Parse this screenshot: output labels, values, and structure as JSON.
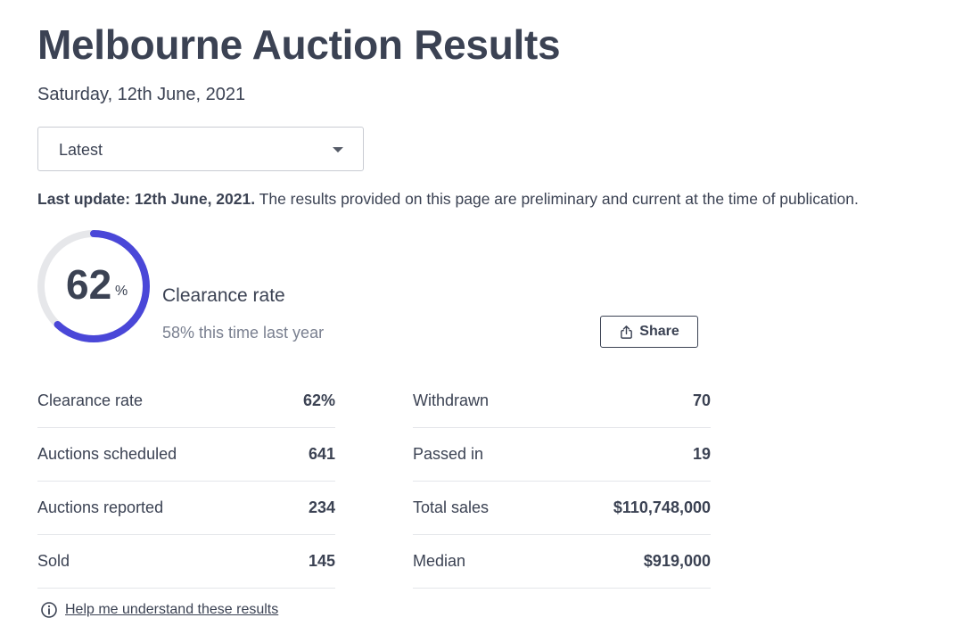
{
  "header": {
    "title": "Melbourne Auction Results",
    "date": "Saturday, 12th June, 2021"
  },
  "filter": {
    "selected": "Latest"
  },
  "update": {
    "bold": "Last update: 12th June, 2021.",
    "text": " The results provided on this page are preliminary and current at the time of publication."
  },
  "summary": {
    "value": "62",
    "unit": "%",
    "progress_fraction": 0.62,
    "label": "Clearance rate",
    "comparison": "58% this time last year",
    "accent_color": "#4a47d8",
    "track_color": "#e6e7ea"
  },
  "share": {
    "label": "Share",
    "icon": "share-icon"
  },
  "stats_left": [
    {
      "label": "Clearance rate",
      "value": "62%"
    },
    {
      "label": "Auctions scheduled",
      "value": "641"
    },
    {
      "label": "Auctions reported",
      "value": "234"
    },
    {
      "label": "Sold",
      "value": "145"
    }
  ],
  "stats_right": [
    {
      "label": "Withdrawn",
      "value": "70"
    },
    {
      "label": "Passed in",
      "value": "19"
    },
    {
      "label": "Total sales",
      "value": "$110,748,000"
    },
    {
      "label": "Median",
      "value": "$919,000"
    }
  ],
  "help": {
    "label": "Help me understand these results",
    "icon": "info-icon"
  }
}
